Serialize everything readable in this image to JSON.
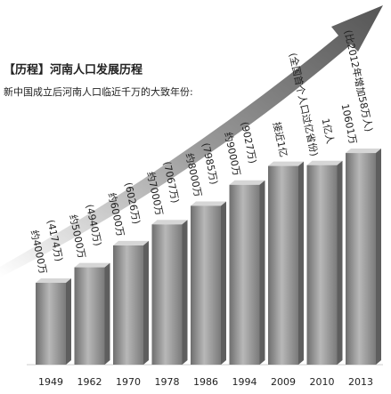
{
  "chart_data": {
    "type": "bar",
    "title": "【历程】河南人口发展历程",
    "subtitle": "新中国成立后河南人口临近千万的大致年份:",
    "categories": [
      "1949",
      "1962",
      "1970",
      "1978",
      "1986",
      "1994",
      "2009",
      "2010",
      "2013"
    ],
    "values": [
      4174,
      4940,
      6026,
      7067,
      7985,
      9027,
      9960,
      10000,
      10601
    ],
    "value_labels": [
      [
        "约4000万",
        "(4174万)"
      ],
      [
        "约5000万",
        "(4940万)"
      ],
      [
        "约6000万",
        "(6026万)"
      ],
      [
        "约7000万",
        "(7067万)"
      ],
      [
        "约8000万",
        "(7985万)"
      ],
      [
        "约9000万",
        "(9027万)"
      ],
      [
        "接近1亿"
      ],
      [
        "(全国首个人口过亿省份)",
        "1亿人"
      ],
      [
        "10601万",
        "(比2012年增加58万人)"
      ]
    ],
    "color": "#8c8c8c",
    "ylim": [
      120,
      11000
    ]
  }
}
